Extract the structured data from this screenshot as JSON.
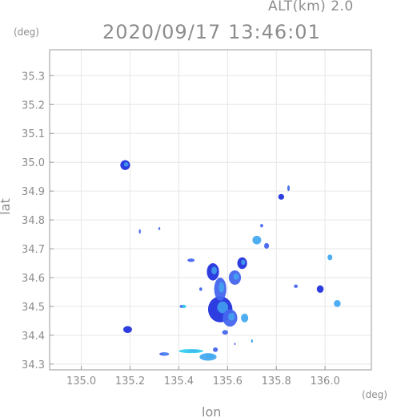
{
  "header": {
    "altitude": "ALT(km) 2.0",
    "datetime": "2020/09/17 13:46:01"
  },
  "axes": {
    "x_label": "lon",
    "y_label": "lat",
    "x_unit": "(deg)",
    "y_unit": "(deg)",
    "x_range": [
      134.87,
      136.19
    ],
    "y_range": [
      34.28,
      35.39
    ],
    "x_ticks": [
      {
        "v": 135.0,
        "label": "135.0"
      },
      {
        "v": 135.2,
        "label": "135.2"
      },
      {
        "v": 135.4,
        "label": "135.4"
      },
      {
        "v": 135.6,
        "label": "135.6"
      },
      {
        "v": 135.8,
        "label": "135.8"
      },
      {
        "v": 136.0,
        "label": "136.0"
      }
    ],
    "y_ticks": [
      {
        "v": 34.3,
        "label": "34.3"
      },
      {
        "v": 34.4,
        "label": "34.4"
      },
      {
        "v": 34.5,
        "label": "34.5"
      },
      {
        "v": 34.6,
        "label": "34.6"
      },
      {
        "v": 34.7,
        "label": "34.7"
      },
      {
        "v": 34.8,
        "label": "34.8"
      },
      {
        "v": 34.9,
        "label": "34.9"
      },
      {
        "v": 35.0,
        "label": "35.0"
      },
      {
        "v": 35.1,
        "label": "35.1"
      },
      {
        "v": 35.2,
        "label": "35.2"
      },
      {
        "v": 35.3,
        "label": "35.3"
      }
    ],
    "grid": true
  },
  "colors": {
    "axis": "#9a9a9a",
    "grid": "#e6e6e6",
    "echo_strong": "#2233dd",
    "echo_mid": "#4466ee",
    "echo_light": "#44aaf0",
    "echo_cyan": "#33ccee"
  },
  "echoes": [
    {
      "lon": 135.18,
      "lat": 34.99,
      "rlon": 0.02,
      "rlat": 0.017,
      "c": "echo_strong"
    },
    {
      "lon": 135.19,
      "lat": 34.42,
      "rlon": 0.018,
      "rlat": 0.012,
      "c": "echo_strong"
    },
    {
      "lon": 135.34,
      "lat": 34.335,
      "rlon": 0.02,
      "rlat": 0.006,
      "c": "echo_mid"
    },
    {
      "lon": 135.52,
      "lat": 34.325,
      "rlon": 0.035,
      "rlat": 0.013,
      "c": "echo_light"
    },
    {
      "lon": 135.45,
      "lat": 34.345,
      "rlon": 0.05,
      "rlat": 0.007,
      "c": "echo_cyan"
    },
    {
      "lon": 135.55,
      "lat": 34.35,
      "rlon": 0.01,
      "rlat": 0.008,
      "c": "echo_mid"
    },
    {
      "lon": 135.57,
      "lat": 34.49,
      "rlon": 0.05,
      "rlat": 0.045,
      "c": "echo_strong"
    },
    {
      "lon": 135.61,
      "lat": 34.46,
      "rlon": 0.03,
      "rlat": 0.03,
      "c": "echo_mid"
    },
    {
      "lon": 135.57,
      "lat": 34.56,
      "rlon": 0.025,
      "rlat": 0.04,
      "c": "echo_mid"
    },
    {
      "lon": 135.54,
      "lat": 34.62,
      "rlon": 0.025,
      "rlat": 0.03,
      "c": "echo_strong"
    },
    {
      "lon": 135.63,
      "lat": 34.6,
      "rlon": 0.025,
      "rlat": 0.025,
      "c": "echo_mid"
    },
    {
      "lon": 135.66,
      "lat": 34.65,
      "rlon": 0.02,
      "rlat": 0.02,
      "c": "echo_strong"
    },
    {
      "lon": 135.59,
      "lat": 34.41,
      "rlon": 0.012,
      "rlat": 0.008,
      "c": "echo_mid"
    },
    {
      "lon": 135.67,
      "lat": 34.46,
      "rlon": 0.015,
      "rlat": 0.015,
      "c": "echo_light"
    },
    {
      "lon": 135.72,
      "lat": 34.73,
      "rlon": 0.018,
      "rlat": 0.015,
      "c": "echo_light"
    },
    {
      "lon": 135.76,
      "lat": 34.71,
      "rlon": 0.01,
      "rlat": 0.01,
      "c": "echo_mid"
    },
    {
      "lon": 135.82,
      "lat": 34.88,
      "rlon": 0.012,
      "rlat": 0.01,
      "c": "echo_strong"
    },
    {
      "lon": 135.85,
      "lat": 34.91,
      "rlon": 0.005,
      "rlat": 0.01,
      "c": "echo_mid"
    },
    {
      "lon": 135.74,
      "lat": 34.78,
      "rlon": 0.006,
      "rlat": 0.006,
      "c": "echo_mid"
    },
    {
      "lon": 135.98,
      "lat": 34.56,
      "rlon": 0.014,
      "rlat": 0.013,
      "c": "echo_strong"
    },
    {
      "lon": 136.05,
      "lat": 34.51,
      "rlon": 0.014,
      "rlat": 0.012,
      "c": "echo_light"
    },
    {
      "lon": 136.02,
      "lat": 34.67,
      "rlon": 0.01,
      "rlat": 0.01,
      "c": "echo_light"
    },
    {
      "lon": 135.88,
      "lat": 34.57,
      "rlon": 0.008,
      "rlat": 0.006,
      "c": "echo_mid"
    },
    {
      "lon": 135.42,
      "lat": 34.5,
      "rlon": 0.01,
      "rlat": 0.006,
      "c": "echo_cyan"
    },
    {
      "lon": 135.41,
      "lat": 34.5,
      "rlon": 0.006,
      "rlat": 0.005,
      "c": "echo_mid"
    },
    {
      "lon": 135.24,
      "lat": 34.76,
      "rlon": 0.004,
      "rlat": 0.008,
      "c": "echo_mid"
    },
    {
      "lon": 135.32,
      "lat": 34.77,
      "rlon": 0.004,
      "rlat": 0.005,
      "c": "echo_mid"
    },
    {
      "lon": 135.45,
      "lat": 34.66,
      "rlon": 0.015,
      "rlat": 0.006,
      "c": "echo_mid"
    },
    {
      "lon": 135.49,
      "lat": 34.56,
      "rlon": 0.006,
      "rlat": 0.006,
      "c": "echo_mid"
    },
    {
      "lon": 135.7,
      "lat": 34.38,
      "rlon": 0.004,
      "rlat": 0.006,
      "c": "echo_light"
    },
    {
      "lon": 135.63,
      "lat": 34.37,
      "rlon": 0.003,
      "rlat": 0.004,
      "c": "echo_mid"
    }
  ]
}
